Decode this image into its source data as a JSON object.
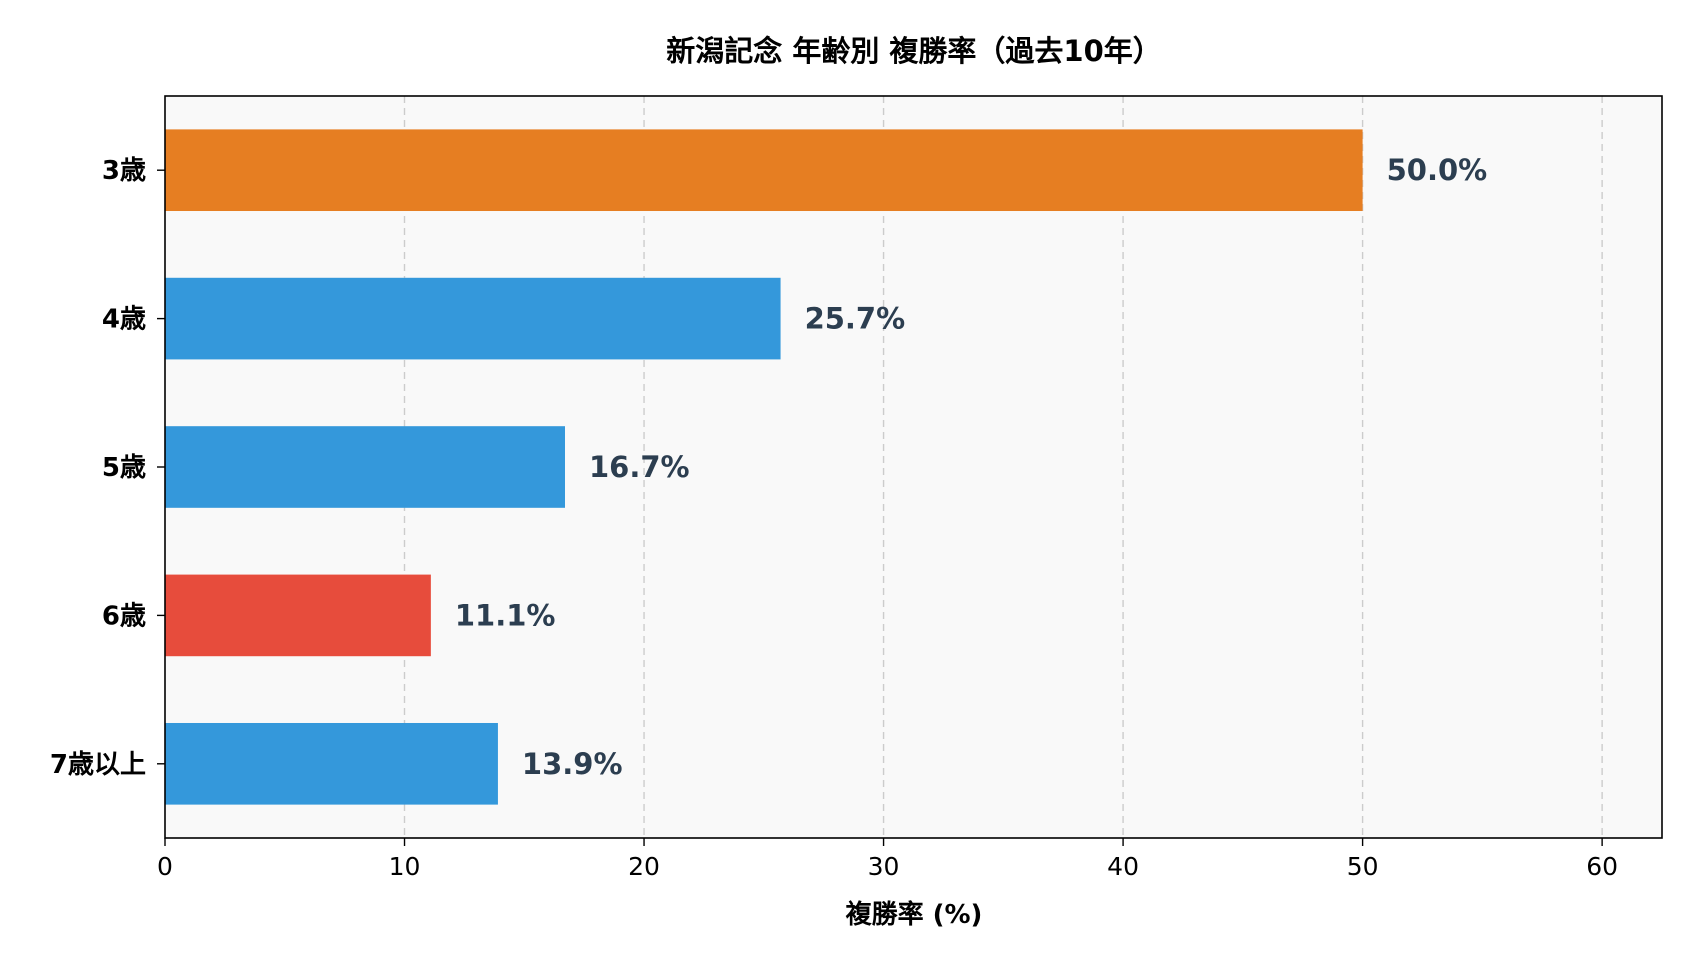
{
  "chart_data": {
    "type": "bar",
    "orientation": "horizontal",
    "title": "新潟記念 年齢別 複勝率（過去10年）",
    "xlabel": "複勝率 (%)",
    "ylabel": "",
    "categories": [
      "3歳",
      "4歳",
      "5歳",
      "6歳",
      "7歳以上"
    ],
    "values": [
      50.0,
      25.7,
      16.7,
      11.1,
      13.9
    ],
    "value_labels": [
      "50.0%",
      "25.7%",
      "16.7%",
      "11.1%",
      "13.9%"
    ],
    "bar_colors": [
      "#e67e22",
      "#3498db",
      "#3498db",
      "#e74c3c",
      "#3498db"
    ],
    "value_label_color": "#2c3e50",
    "xlim": [
      0,
      62.5
    ],
    "xticks": [
      0,
      10,
      20,
      30,
      40,
      50,
      60
    ],
    "xtick_labels": [
      "0",
      "10",
      "20",
      "30",
      "40",
      "50",
      "60"
    ],
    "grid": "x-dashed",
    "plot_background": "#f9f9f9"
  }
}
